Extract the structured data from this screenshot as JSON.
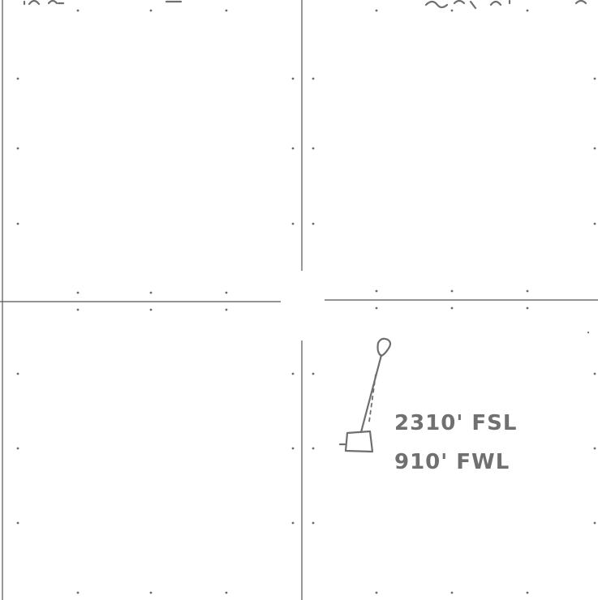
{
  "well_location": {
    "fsl_label": "2310' FSL",
    "fwl_label": "910' FWL"
  }
}
